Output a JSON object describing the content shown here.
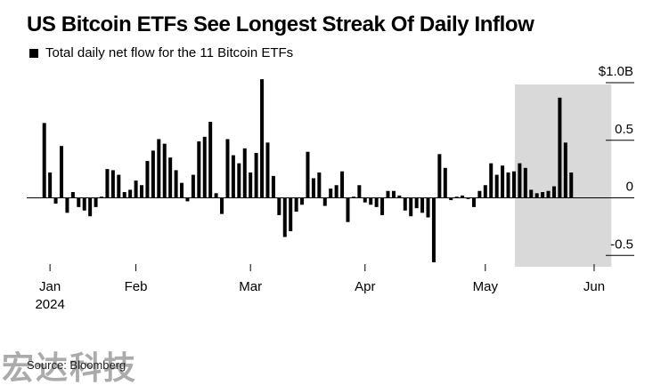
{
  "chart_data": {
    "type": "bar",
    "title": "US Bitcoin ETFs See Longest Streak Of Daily Inflow",
    "legend": [
      "Total daily net flow for the 11 Bitcoin ETFs"
    ],
    "unit": "$B",
    "y_ticks": [
      {
        "value": 1.0,
        "label": "$1.0B"
      },
      {
        "value": 0.5,
        "label": "0.5"
      },
      {
        "value": 0,
        "label": "0"
      },
      {
        "value": -0.5,
        "label": "-0.5"
      }
    ],
    "ylim": [
      -0.6,
      1.05
    ],
    "x_ticks": [
      {
        "index": 1,
        "label": "Jan",
        "sublabel": "2024"
      },
      {
        "index": 16,
        "label": "Feb"
      },
      {
        "index": 36,
        "label": "Mar"
      },
      {
        "index": 56,
        "label": "Apr"
      },
      {
        "index": 77,
        "label": "May"
      },
      {
        "index": 96,
        "label": "Jun"
      }
    ],
    "highlight_range": [
      83,
      99
    ],
    "grid": false,
    "color": "#000000",
    "highlight_color": "#d9d9d9",
    "values": [
      0.65,
      0.22,
      -0.05,
      0.45,
      -0.13,
      0.05,
      -0.08,
      -0.11,
      -0.16,
      -0.08,
      0.01,
      0.25,
      0.24,
      0.2,
      0.05,
      0.07,
      0.15,
      0.11,
      0.32,
      0.41,
      0.51,
      0.47,
      0.35,
      0.24,
      0.13,
      -0.03,
      0.2,
      0.49,
      0.53,
      0.66,
      0.04,
      -0.14,
      0.51,
      0.37,
      0.3,
      0.43,
      0.22,
      0.39,
      1.03,
      0.48,
      0.19,
      -0.15,
      -0.34,
      -0.29,
      -0.12,
      -0.06,
      0.4,
      0.17,
      0.22,
      -0.07,
      0.08,
      0.11,
      0.23,
      -0.21,
      0.01,
      0.11,
      -0.04,
      -0.06,
      -0.08,
      -0.15,
      0.06,
      0.06,
      0.02,
      -0.11,
      -0.16,
      -0.09,
      -0.13,
      -0.17,
      -0.56,
      0.38,
      0.26,
      -0.02,
      0.01,
      0.02,
      -0.01,
      -0.08,
      0.06,
      0.11,
      0.3,
      0.2,
      0.28,
      0.22,
      0.23,
      0.3,
      0.26,
      0.07,
      0.04,
      0.05,
      0.06,
      0.1,
      0.87,
      0.48,
      0.22
    ]
  },
  "footer": {
    "source": "Source: Bloomberg",
    "watermark": "宏达科技"
  }
}
